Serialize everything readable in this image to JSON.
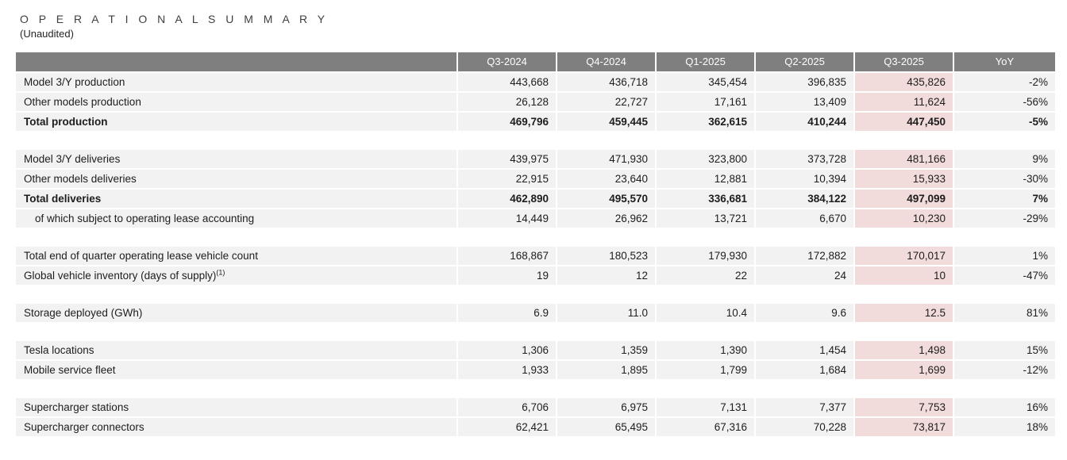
{
  "page": {
    "title": "O P E R A T I O N A L   S U M M A R Y",
    "title_plain": "OPERATIONAL SUMMARY",
    "subtitle": "(Unaudited)"
  },
  "colors": {
    "header_bg": "#7f7f7f",
    "header_text": "#ffffff",
    "row_bg": "#f2f2f2",
    "highlight_bg": "#f2dcdb",
    "text": "#1d1d1d"
  },
  "table": {
    "columns": [
      "",
      "Q3-2024",
      "Q4-2024",
      "Q1-2025",
      "Q2-2025",
      "Q3-2025",
      "YoY"
    ],
    "highlight_column": "Q3-2025",
    "highlight_column_index": 4,
    "sections": [
      {
        "rows": [
          {
            "label": "Model 3/Y production",
            "values": [
              "443,668",
              "436,718",
              "345,454",
              "396,835",
              "435,826"
            ],
            "yoy": "-2%"
          },
          {
            "label": "Other models production",
            "values": [
              "26,128",
              "22,727",
              "17,161",
              "13,409",
              "11,624"
            ],
            "yoy": "-56%"
          },
          {
            "label": "Total production",
            "values": [
              "469,796",
              "459,445",
              "362,615",
              "410,244",
              "447,450"
            ],
            "yoy": "-5%",
            "bold": true
          }
        ]
      },
      {
        "rows": [
          {
            "label": "Model 3/Y deliveries",
            "values": [
              "439,975",
              "471,930",
              "323,800",
              "373,728",
              "481,166"
            ],
            "yoy": "9%"
          },
          {
            "label": "Other models deliveries",
            "values": [
              "22,915",
              "23,640",
              "12,881",
              "10,394",
              "15,933"
            ],
            "yoy": "-30%"
          },
          {
            "label": "Total deliveries",
            "values": [
              "462,890",
              "495,570",
              "336,681",
              "384,122",
              "497,099"
            ],
            "yoy": "7%",
            "bold": true
          },
          {
            "label": "of which subject to operating lease accounting",
            "values": [
              "14,449",
              "26,962",
              "13,721",
              "6,670",
              "10,230"
            ],
            "yoy": "-29%",
            "indent": true
          }
        ]
      },
      {
        "rows": [
          {
            "label": "Total end of quarter operating lease vehicle count",
            "values": [
              "168,867",
              "180,523",
              "179,930",
              "172,882",
              "170,017"
            ],
            "yoy": "1%"
          },
          {
            "label": "Global vehicle inventory (days of supply)",
            "label_sup": "(1)",
            "values": [
              "19",
              "12",
              "22",
              "24",
              "10"
            ],
            "yoy": "-47%"
          }
        ]
      },
      {
        "rows": [
          {
            "label": "Storage deployed (GWh)",
            "values": [
              "6.9",
              "11.0",
              "10.4",
              "9.6",
              "12.5"
            ],
            "yoy": "81%"
          }
        ]
      },
      {
        "rows": [
          {
            "label": "Tesla locations",
            "values": [
              "1,306",
              "1,359",
              "1,390",
              "1,454",
              "1,498"
            ],
            "yoy": "15%"
          },
          {
            "label": "Mobile service fleet",
            "values": [
              "1,933",
              "1,895",
              "1,799",
              "1,684",
              "1,699"
            ],
            "yoy": "-12%"
          }
        ]
      },
      {
        "rows": [
          {
            "label": "Supercharger stations",
            "values": [
              "6,706",
              "6,975",
              "7,131",
              "7,377",
              "7,753"
            ],
            "yoy": "16%"
          },
          {
            "label": "Supercharger connectors",
            "values": [
              "62,421",
              "65,495",
              "67,316",
              "70,228",
              "73,817"
            ],
            "yoy": "18%"
          }
        ]
      }
    ]
  }
}
